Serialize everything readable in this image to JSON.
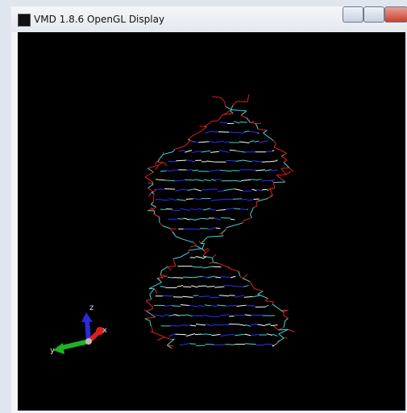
{
  "window": {
    "title": "VMD 1.8.6 OpenGL Display"
  },
  "axes": {
    "z": "z",
    "y": "y",
    "x": "x"
  }
}
